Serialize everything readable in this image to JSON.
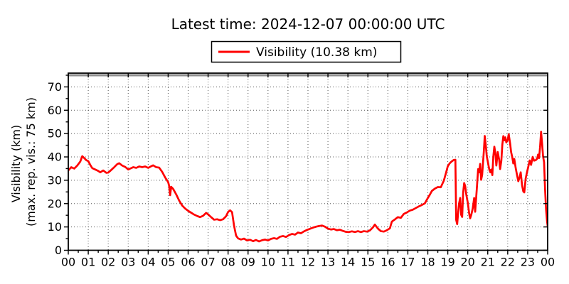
{
  "chart_data": {
    "type": "line",
    "title": "Latest time: 2024-12-07 00:00:00 UTC",
    "xlabel": "",
    "ylabel_line1": "Visibility (km)",
    "ylabel_line2": "(max. rep. vis.: 75 km)",
    "xlim_hours": [
      0,
      24
    ],
    "ylim": [
      0,
      75.9
    ],
    "grid": true,
    "legend_position": "top-center",
    "x_tick_labels": [
      "00",
      "01",
      "02",
      "03",
      "04",
      "05",
      "06",
      "07",
      "08",
      "09",
      "10",
      "11",
      "12",
      "13",
      "14",
      "15",
      "16",
      "17",
      "18",
      "19",
      "20",
      "21",
      "22",
      "23",
      "00"
    ],
    "y_ticks": [
      0,
      10,
      20,
      30,
      40,
      50,
      60,
      70
    ],
    "x_minor_step_hours": 0.5,
    "y_minor_step": 5,
    "reference_lines": [
      {
        "y": 75,
        "color": "#909090",
        "label": "max. rep. vis.: 75 km"
      }
    ],
    "series": [
      {
        "name": "Visibility (10.38 km)",
        "color": "#ff0000",
        "latest_value_km": 10.38,
        "points": [
          [
            0,
            34.2
          ],
          [
            0.15,
            35.6
          ],
          [
            0.3,
            35.0
          ],
          [
            0.45,
            36.3
          ],
          [
            0.6,
            38.0
          ],
          [
            0.7,
            40.3
          ],
          [
            0.8,
            39.5
          ],
          [
            0.9,
            38.6
          ],
          [
            1.0,
            38.2
          ],
          [
            1.1,
            36.6
          ],
          [
            1.2,
            35.2
          ],
          [
            1.35,
            34.6
          ],
          [
            1.5,
            34.0
          ],
          [
            1.6,
            33.4
          ],
          [
            1.75,
            34.2
          ],
          [
            1.9,
            33.2
          ],
          [
            2.0,
            33.3
          ],
          [
            2.15,
            34.4
          ],
          [
            2.3,
            35.6
          ],
          [
            2.45,
            36.9
          ],
          [
            2.55,
            37.3
          ],
          [
            2.7,
            36.3
          ],
          [
            2.85,
            35.7
          ],
          [
            3.0,
            34.6
          ],
          [
            3.1,
            35.0
          ],
          [
            3.25,
            35.6
          ],
          [
            3.4,
            35.3
          ],
          [
            3.55,
            35.9
          ],
          [
            3.7,
            35.6
          ],
          [
            3.85,
            35.9
          ],
          [
            4.0,
            35.3
          ],
          [
            4.15,
            36.0
          ],
          [
            4.25,
            36.4
          ],
          [
            4.4,
            35.6
          ],
          [
            4.55,
            35.4
          ],
          [
            4.7,
            33.6
          ],
          [
            4.85,
            31.2
          ],
          [
            5.0,
            29.2
          ],
          [
            5.05,
            27.6
          ],
          [
            5.1,
            23.6
          ],
          [
            5.15,
            27.2
          ],
          [
            5.25,
            26.3
          ],
          [
            5.4,
            24.0
          ],
          [
            5.55,
            21.3
          ],
          [
            5.7,
            19.2
          ],
          [
            5.85,
            17.9
          ],
          [
            6.0,
            16.9
          ],
          [
            6.15,
            16.1
          ],
          [
            6.3,
            15.3
          ],
          [
            6.45,
            14.7
          ],
          [
            6.6,
            14.2
          ],
          [
            6.75,
            14.8
          ],
          [
            6.9,
            16.0
          ],
          [
            7.0,
            15.4
          ],
          [
            7.15,
            14.2
          ],
          [
            7.3,
            13.1
          ],
          [
            7.45,
            13.3
          ],
          [
            7.6,
            12.9
          ],
          [
            7.75,
            13.3
          ],
          [
            7.9,
            14.6
          ],
          [
            8.0,
            16.4
          ],
          [
            8.1,
            17.1
          ],
          [
            8.2,
            16.3
          ],
          [
            8.3,
            10.5
          ],
          [
            8.4,
            6.3
          ],
          [
            8.5,
            5.1
          ],
          [
            8.65,
            4.6
          ],
          [
            8.8,
            5.0
          ],
          [
            8.95,
            4.2
          ],
          [
            9.1,
            4.5
          ],
          [
            9.25,
            3.9
          ],
          [
            9.4,
            4.4
          ],
          [
            9.55,
            3.8
          ],
          [
            9.7,
            4.3
          ],
          [
            9.85,
            4.6
          ],
          [
            10.0,
            4.2
          ],
          [
            10.15,
            4.9
          ],
          [
            10.3,
            5.2
          ],
          [
            10.45,
            4.9
          ],
          [
            10.6,
            5.8
          ],
          [
            10.75,
            6.1
          ],
          [
            10.9,
            5.7
          ],
          [
            11.05,
            6.5
          ],
          [
            11.2,
            7.0
          ],
          [
            11.35,
            6.7
          ],
          [
            11.5,
            7.6
          ],
          [
            11.65,
            7.3
          ],
          [
            11.8,
            8.1
          ],
          [
            11.95,
            8.7
          ],
          [
            12.1,
            9.2
          ],
          [
            12.25,
            9.7
          ],
          [
            12.4,
            10.1
          ],
          [
            12.55,
            10.4
          ],
          [
            12.7,
            10.6
          ],
          [
            12.85,
            10.1
          ],
          [
            13.0,
            9.3
          ],
          [
            13.15,
            8.9
          ],
          [
            13.3,
            9.1
          ],
          [
            13.45,
            8.6
          ],
          [
            13.6,
            8.8
          ],
          [
            13.75,
            8.3
          ],
          [
            13.9,
            7.9
          ],
          [
            14.05,
            7.8
          ],
          [
            14.2,
            8.1
          ],
          [
            14.35,
            7.8
          ],
          [
            14.5,
            8.2
          ],
          [
            14.65,
            7.8
          ],
          [
            14.8,
            8.2
          ],
          [
            14.95,
            8.0
          ],
          [
            15.1,
            8.5
          ],
          [
            15.25,
            9.8
          ],
          [
            15.35,
            11.0
          ],
          [
            15.5,
            9.3
          ],
          [
            15.65,
            8.2
          ],
          [
            15.8,
            8.0
          ],
          [
            15.95,
            8.6
          ],
          [
            16.1,
            9.4
          ],
          [
            16.2,
            12.3
          ],
          [
            16.35,
            13.2
          ],
          [
            16.5,
            14.2
          ],
          [
            16.65,
            13.9
          ],
          [
            16.8,
            15.6
          ],
          [
            16.95,
            16.2
          ],
          [
            17.1,
            17.0
          ],
          [
            17.25,
            17.4
          ],
          [
            17.4,
            18.1
          ],
          [
            17.55,
            18.8
          ],
          [
            17.7,
            19.4
          ],
          [
            17.85,
            20.1
          ],
          [
            18.0,
            22.4
          ],
          [
            18.1,
            23.8
          ],
          [
            18.2,
            25.4
          ],
          [
            18.35,
            26.4
          ],
          [
            18.5,
            27.1
          ],
          [
            18.65,
            27.0
          ],
          [
            18.8,
            29.8
          ],
          [
            18.9,
            32.8
          ],
          [
            19.0,
            36.0
          ],
          [
            19.1,
            37.3
          ],
          [
            19.2,
            38.1
          ],
          [
            19.3,
            38.7
          ],
          [
            19.38,
            38.8
          ],
          [
            19.42,
            13.0
          ],
          [
            19.47,
            11.2
          ],
          [
            19.52,
            16.2
          ],
          [
            19.57,
            20.3
          ],
          [
            19.62,
            22.4
          ],
          [
            19.67,
            15.2
          ],
          [
            19.72,
            14.3
          ],
          [
            19.77,
            24.8
          ],
          [
            19.82,
            28.8
          ],
          [
            19.87,
            27.6
          ],
          [
            19.92,
            24.2
          ],
          [
            20.0,
            20.4
          ],
          [
            20.07,
            15.8
          ],
          [
            20.12,
            13.7
          ],
          [
            20.18,
            15.3
          ],
          [
            20.25,
            18.0
          ],
          [
            20.32,
            22.4
          ],
          [
            20.37,
            16.5
          ],
          [
            20.45,
            26.0
          ],
          [
            20.52,
            34.8
          ],
          [
            20.57,
            33.4
          ],
          [
            20.62,
            37.0
          ],
          [
            20.67,
            30.2
          ],
          [
            20.72,
            32.3
          ],
          [
            20.8,
            41.8
          ],
          [
            20.85,
            49.0
          ],
          [
            20.9,
            45.2
          ],
          [
            20.95,
            40.3
          ],
          [
            21.0,
            38.1
          ],
          [
            21.07,
            34.9
          ],
          [
            21.13,
            33.4
          ],
          [
            21.18,
            34.6
          ],
          [
            21.23,
            32.2
          ],
          [
            21.28,
            40.2
          ],
          [
            21.33,
            44.4
          ],
          [
            21.38,
            41.8
          ],
          [
            21.43,
            36.3
          ],
          [
            21.5,
            42.1
          ],
          [
            21.57,
            38.9
          ],
          [
            21.62,
            34.8
          ],
          [
            21.68,
            38.3
          ],
          [
            21.73,
            45.2
          ],
          [
            21.78,
            48.9
          ],
          [
            21.83,
            47.1
          ],
          [
            21.88,
            48.4
          ],
          [
            21.93,
            46.2
          ],
          [
            22.0,
            47.3
          ],
          [
            22.05,
            49.7
          ],
          [
            22.12,
            45.8
          ],
          [
            22.17,
            42.1
          ],
          [
            22.23,
            39.8
          ],
          [
            22.28,
            37.2
          ],
          [
            22.33,
            39.1
          ],
          [
            22.4,
            35.2
          ],
          [
            22.47,
            32.1
          ],
          [
            22.53,
            29.6
          ],
          [
            22.6,
            31.4
          ],
          [
            22.65,
            33.4
          ],
          [
            22.72,
            27.8
          ],
          [
            22.78,
            25.2
          ],
          [
            22.83,
            24.8
          ],
          [
            22.9,
            30.8
          ],
          [
            22.97,
            33.6
          ],
          [
            23.03,
            35.8
          ],
          [
            23.1,
            38.5
          ],
          [
            23.17,
            36.6
          ],
          [
            23.25,
            40.0
          ],
          [
            23.32,
            38.4
          ],
          [
            23.4,
            38.6
          ],
          [
            23.47,
            39.2
          ],
          [
            23.52,
            41.0
          ],
          [
            23.57,
            39.5
          ],
          [
            23.62,
            44.2
          ],
          [
            23.67,
            50.8
          ],
          [
            23.72,
            45.9
          ],
          [
            23.77,
            40.2
          ],
          [
            23.82,
            37.8
          ],
          [
            23.87,
            26.2
          ],
          [
            23.92,
            17.5
          ],
          [
            23.97,
            12.3
          ],
          [
            24,
            10.38
          ]
        ]
      }
    ]
  },
  "style": {
    "grid_color": "#555555",
    "axis_color": "#000000",
    "background": "#ffffff"
  }
}
